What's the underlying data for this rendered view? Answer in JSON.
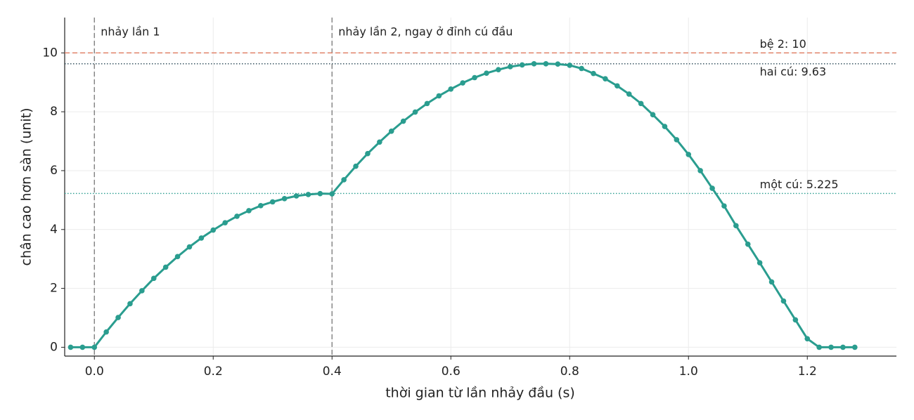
{
  "chart_data": {
    "type": "line",
    "xlabel": "thời gian từ lần nhảy đầu (s)",
    "ylabel": "chân cao hơn sàn (unit)",
    "x": [
      -0.04,
      -0.02,
      0,
      0.02,
      0.04,
      0.06,
      0.08,
      0.1,
      0.12,
      0.14,
      0.16,
      0.18,
      0.2,
      0.22,
      0.24,
      0.26,
      0.28,
      0.3,
      0.32,
      0.34,
      0.36,
      0.38,
      0.4,
      0.42,
      0.44,
      0.46,
      0.48,
      0.5,
      0.52,
      0.54,
      0.56,
      0.58,
      0.6,
      0.62,
      0.64,
      0.66,
      0.68,
      0.7,
      0.72,
      0.74,
      0.76,
      0.78,
      0.8,
      0.82,
      0.84,
      0.86,
      0.88,
      0.9,
      0.92,
      0.94,
      0.96,
      0.98,
      1.0,
      1.02,
      1.04,
      1.06,
      1.08,
      1.1,
      1.12,
      1.14,
      1.16,
      1.18,
      1.2,
      1.22,
      1.24,
      1.26,
      1.28
    ],
    "values": [
      0,
      0,
      0,
      0.52,
      1.01,
      1.48,
      1.92,
      2.34,
      2.72,
      3.08,
      3.41,
      3.71,
      3.98,
      4.23,
      4.45,
      4.64,
      4.81,
      4.94,
      5.05,
      5.14,
      5.19,
      5.22,
      5.21,
      5.69,
      6.15,
      6.58,
      6.97,
      7.34,
      7.68,
      7.99,
      8.28,
      8.54,
      8.77,
      8.98,
      9.16,
      9.31,
      9.43,
      9.53,
      9.59,
      9.63,
      9.63,
      9.62,
      9.58,
      9.47,
      9.3,
      9.12,
      8.88,
      8.6,
      8.28,
      7.9,
      7.5,
      7.05,
      6.55,
      6.0,
      5.4,
      4.8,
      4.13,
      3.5,
      2.87,
      2.22,
      1.57,
      0.93,
      0.29,
      0,
      0,
      0,
      0
    ],
    "color": "#2a9d8f",
    "xlim": [
      -0.05,
      1.35
    ],
    "ylim": [
      -0.3,
      11.2
    ],
    "xticks": [
      {
        "value": 0,
        "label": "0.0"
      },
      0.2,
      0.4,
      0.6,
      0.8,
      {
        "value": 1,
        "label": "1.0"
      },
      1.2
    ],
    "yticks": [
      0,
      2,
      4,
      6,
      8,
      10
    ],
    "grid": true,
    "hlines": [
      {
        "value": 10,
        "label": "bệ 2: 10",
        "color": "#e07a5f",
        "style": "dashed"
      },
      {
        "value": 9.63,
        "label": "hai cú: 9.63",
        "color": "#264653",
        "style": "dotted"
      },
      {
        "value": 5.225,
        "label": "một cú: 5.225",
        "color": "#2a9d8f",
        "style": "dotted"
      }
    ],
    "vlines": [
      {
        "value": 0,
        "label": "nhảy lần 1",
        "color": "#808080",
        "style": "dashed"
      },
      {
        "value": 0.4,
        "label": "nhảy lần 2, ngay ở đỉnh cú đầu",
        "color": "#808080",
        "style": "dashed"
      }
    ]
  }
}
